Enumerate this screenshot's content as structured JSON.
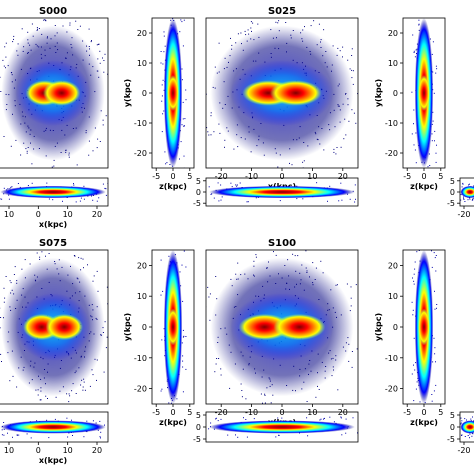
{
  "chart_data": [
    {
      "id": "s000-face",
      "model": "S000",
      "title": "S000",
      "type": "heatmap",
      "view": "face-on",
      "xlabel": "",
      "ylabel": "",
      "xticks": [],
      "yticks": [],
      "bar_length": "long",
      "peanut": 0.15
    },
    {
      "id": "s000-edge",
      "model": "S000",
      "title": "",
      "type": "heatmap",
      "view": "edge-on",
      "xlabel": "x(kpc)",
      "ylabel": "",
      "xticks": [
        "10",
        "0",
        "10",
        "20"
      ],
      "yticks": []
    },
    {
      "id": "s000-side",
      "model": "S000",
      "title": "",
      "type": "heatmap",
      "view": "side-on",
      "xlabel": "z(kpc)",
      "ylabel": "y(kpc)",
      "xticks": [
        "-5",
        "0",
        "5"
      ],
      "yticks": [
        "20",
        "10",
        "0",
        "-10",
        "-20"
      ]
    },
    {
      "id": "s025-face",
      "model": "S025",
      "title": "S025",
      "type": "heatmap",
      "view": "face-on",
      "xlabel": "x(kpc)",
      "ylabel": "",
      "xticks": [
        "-20",
        "-10",
        "0",
        "10",
        "20"
      ],
      "yticks": [],
      "bar_length": "medium",
      "peanut": 0.35
    },
    {
      "id": "s025-edge",
      "model": "S025",
      "title": "",
      "type": "heatmap",
      "view": "edge-on",
      "xlabel": "",
      "ylabel": "",
      "xticks": [],
      "yticks": [
        "5",
        "0",
        "-5"
      ]
    },
    {
      "id": "s025-side",
      "model": "S025",
      "title": "",
      "type": "heatmap",
      "view": "side-on",
      "xlabel": "z(kpc)",
      "ylabel": "y(kpc)",
      "xticks": [
        "-5",
        "0",
        "5"
      ],
      "yticks": [
        "20",
        "10",
        "0",
        "-10",
        "-20"
      ]
    },
    {
      "id": "s025-right-edge",
      "model": "S025",
      "title": "",
      "type": "heatmap",
      "view": "edge-on",
      "xlabel": "",
      "ylabel": "",
      "xticks": [
        "-20"
      ],
      "yticks": [
        "5",
        "0",
        "-5"
      ]
    },
    {
      "id": "s075-face",
      "model": "S075",
      "title": "S075",
      "type": "heatmap",
      "view": "face-on",
      "xlabel": "",
      "ylabel": "",
      "xticks": [],
      "yticks": [],
      "bar_length": "long",
      "peanut": 0.55
    },
    {
      "id": "s075-edge",
      "model": "S075",
      "title": "",
      "type": "heatmap",
      "view": "edge-on",
      "xlabel": "x(kpc)",
      "ylabel": "",
      "xticks": [
        "10",
        "0",
        "10",
        "20"
      ],
      "yticks": []
    },
    {
      "id": "s075-side",
      "model": "S075",
      "title": "",
      "type": "heatmap",
      "view": "side-on",
      "xlabel": "z(kpc)",
      "ylabel": "y(kpc)",
      "xticks": [
        "-5",
        "0",
        "5"
      ],
      "yticks": [
        "20",
        "10",
        "0",
        "-10",
        "-20"
      ]
    },
    {
      "id": "s100-face",
      "model": "S100",
      "title": "S100",
      "type": "heatmap",
      "view": "face-on",
      "xlabel": "x(kpc)",
      "ylabel": "",
      "xticks": [
        "-20",
        "-10",
        "0",
        "10",
        "20"
      ],
      "yticks": [],
      "bar_length": "long",
      "peanut": 0.75
    },
    {
      "id": "s100-edge",
      "model": "S100",
      "title": "",
      "type": "heatmap",
      "view": "edge-on",
      "xlabel": "",
      "ylabel": "",
      "xticks": [],
      "yticks": [
        "5",
        "0",
        "-5"
      ]
    },
    {
      "id": "s100-side",
      "model": "S100",
      "title": "",
      "type": "heatmap",
      "view": "side-on",
      "xlabel": "z(kpc)",
      "ylabel": "y(kpc)",
      "xticks": [
        "-5",
        "0",
        "5"
      ],
      "yticks": [
        "20",
        "10",
        "0",
        "-10",
        "-20"
      ]
    },
    {
      "id": "s100-right-edge",
      "model": "S100",
      "title": "",
      "type": "heatmap",
      "view": "edge-on",
      "xlabel": "",
      "ylabel": "",
      "xticks": [
        "-20"
      ],
      "yticks": [
        "5",
        "0",
        "-5"
      ]
    }
  ],
  "colors": {
    "colormap": "jet",
    "stops": [
      "#00007f",
      "#0000ff",
      "#0080ff",
      "#00ffff",
      "#80ff80",
      "#ffff00",
      "#ff8000",
      "#ff0000",
      "#7f0000"
    ],
    "axes_frame": "#000000"
  }
}
